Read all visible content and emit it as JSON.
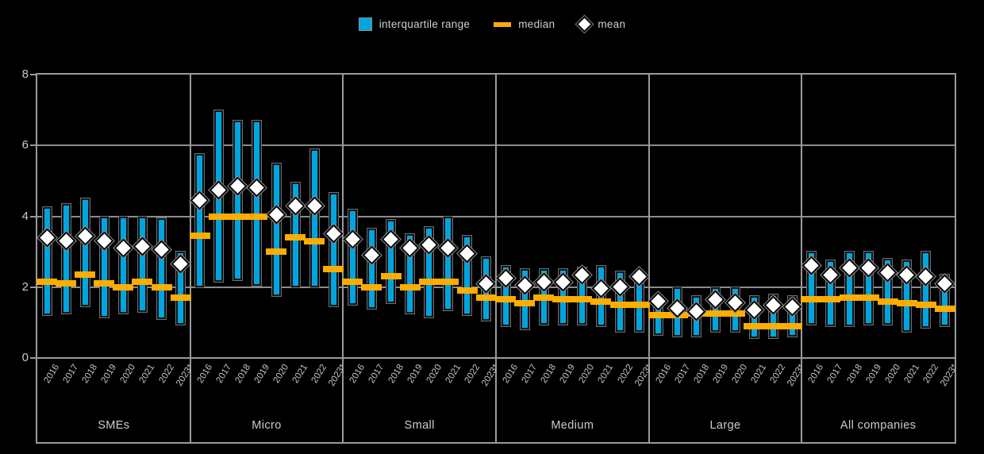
{
  "legend": [
    {
      "label": "interquartile range",
      "marker": "square-icon",
      "color": "#00A5E0"
    },
    {
      "label": "median",
      "marker": "dash-icon",
      "color": "#FFAD00"
    },
    {
      "label": "mean",
      "marker": "diamond-icon",
      "color": "#FFFFFF"
    }
  ],
  "colors": {
    "background": "#000000",
    "iqr": "#00A5E0",
    "median": "#FFAD00",
    "mean_fill": "#FFFFFF",
    "grid": "#8C8C8C",
    "text": "#C9C9C9"
  },
  "chart_data": {
    "type": "boxplot",
    "title": "",
    "xlabel": "",
    "ylabel": "",
    "ylim": [
      0,
      8
    ],
    "yticks": [
      "0",
      "2",
      "4",
      "6",
      "8"
    ],
    "grid": true,
    "legend_position": "top-center",
    "periods": [
      "2016",
      "2017",
      "2018",
      "2019",
      "2020",
      "2021",
      "2022",
      "2023*"
    ],
    "groups": [
      {
        "name": "SMEs",
        "q3": [
          4.25,
          4.35,
          4.5,
          4.0,
          4.0,
          4.0,
          3.95,
          3.0
        ],
        "median": [
          2.15,
          2.1,
          2.35,
          2.1,
          2.0,
          2.15,
          2.0,
          1.7
        ],
        "mean": [
          3.4,
          3.3,
          3.45,
          3.3,
          3.1,
          3.15,
          3.05,
          2.65
        ],
        "q1": [
          1.2,
          1.25,
          1.45,
          1.15,
          1.25,
          1.3,
          1.1,
          0.95
        ]
      },
      {
        "name": "Micro",
        "q3": [
          5.75,
          7.0,
          6.7,
          6.7,
          5.5,
          4.95,
          5.9,
          4.65
        ],
        "median": [
          3.45,
          4.0,
          4.0,
          4.0,
          3.0,
          3.4,
          3.3,
          2.5
        ],
        "mean": [
          4.45,
          4.75,
          4.85,
          4.8,
          4.05,
          4.3,
          4.3,
          3.5
        ],
        "q1": [
          2.0,
          2.15,
          2.2,
          2.05,
          1.75,
          2.0,
          2.0,
          1.45
        ]
      },
      {
        "name": "Small",
        "q3": [
          4.2,
          3.65,
          3.9,
          3.5,
          3.7,
          4.0,
          3.45,
          2.85
        ],
        "median": [
          2.15,
          2.0,
          2.3,
          2.0,
          2.15,
          2.15,
          1.9,
          1.7
        ],
        "mean": [
          3.35,
          2.9,
          3.35,
          3.1,
          3.2,
          3.1,
          2.95,
          2.1
        ],
        "q1": [
          1.5,
          1.4,
          1.55,
          1.25,
          1.15,
          1.35,
          1.2,
          1.05
        ]
      },
      {
        "name": "Medium",
        "q3": [
          2.6,
          2.5,
          2.5,
          2.5,
          2.55,
          2.6,
          2.45,
          2.1
        ],
        "median": [
          1.65,
          1.55,
          1.7,
          1.65,
          1.65,
          1.6,
          1.5,
          1.5
        ],
        "mean": [
          2.25,
          2.05,
          2.15,
          2.15,
          2.35,
          1.95,
          2.0,
          2.3
        ],
        "q1": [
          0.9,
          0.8,
          0.95,
          0.95,
          0.95,
          0.9,
          0.75,
          0.75
        ]
      },
      {
        "name": "Large",
        "q3": [
          1.75,
          2.0,
          1.75,
          2.0,
          2.0,
          1.75,
          1.8,
          1.75
        ],
        "median": [
          1.2,
          1.2,
          1.25,
          1.25,
          1.25,
          0.9,
          0.9,
          0.9
        ],
        "mean": [
          1.6,
          1.4,
          1.3,
          1.65,
          1.55,
          1.35,
          1.5,
          1.45
        ],
        "q1": [
          0.65,
          0.6,
          0.6,
          0.75,
          0.75,
          0.55,
          0.55,
          0.6
        ]
      },
      {
        "name": "All companies",
        "q3": [
          3.0,
          2.75,
          3.0,
          3.0,
          2.8,
          2.75,
          3.0,
          2.35
        ],
        "median": [
          1.65,
          1.65,
          1.7,
          1.7,
          1.6,
          1.55,
          1.5,
          1.4
        ],
        "mean": [
          2.6,
          2.35,
          2.55,
          2.55,
          2.4,
          2.35,
          2.3,
          2.1
        ],
        "q1": [
          0.95,
          0.9,
          0.9,
          0.95,
          0.95,
          0.75,
          0.85,
          0.9
        ]
      }
    ]
  }
}
